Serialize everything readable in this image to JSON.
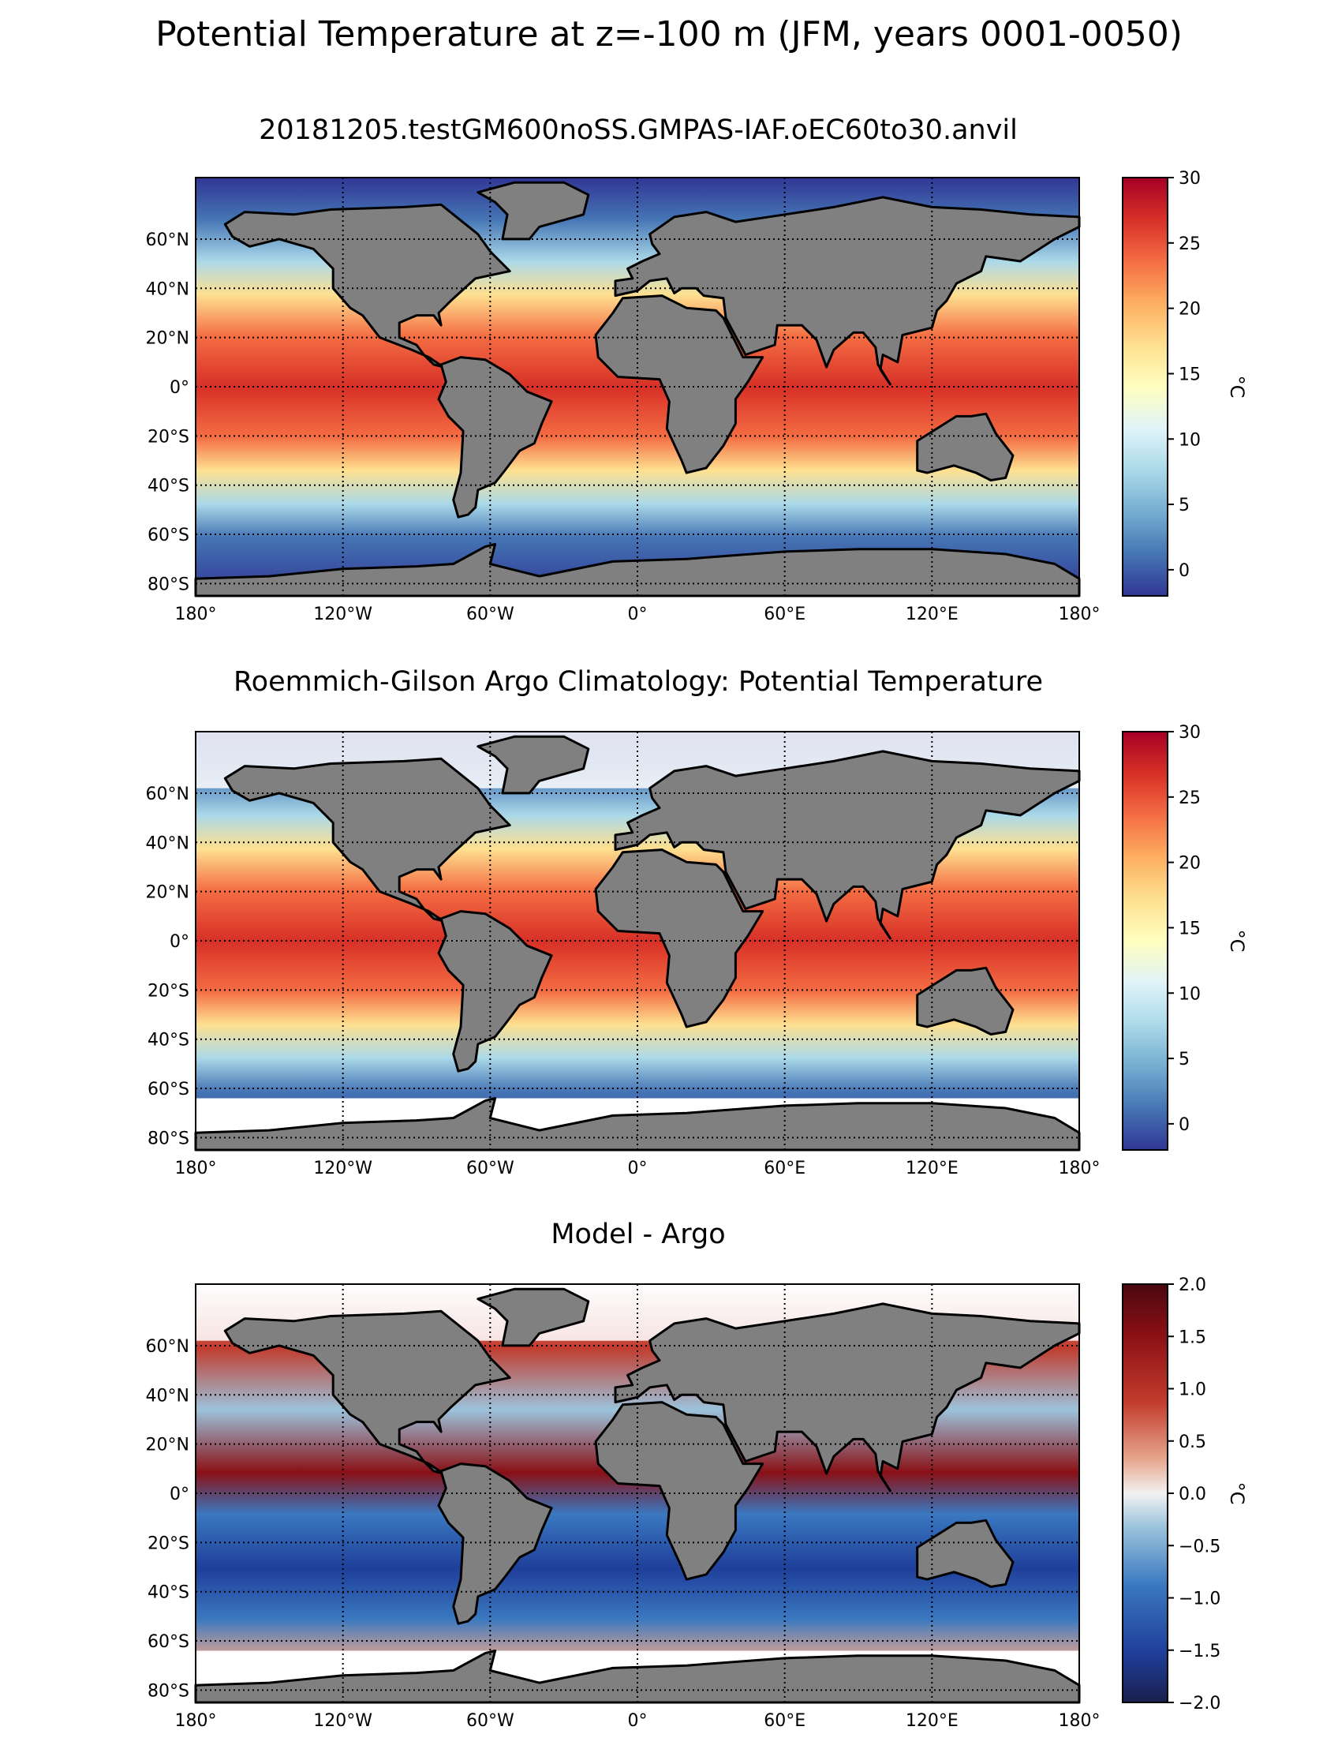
{
  "suptitle": "Potential Temperature at z=-100 m (JFM, years 0001-0050)",
  "panels": [
    {
      "id": "model",
      "title": "20181205.testGM600noSS.GMPAS-IAF.oEC60to30.anvil",
      "lat_labels": [
        "60°N",
        "40°N",
        "20°N",
        "0°",
        "20°S",
        "40°S",
        "60°S",
        "80°S"
      ],
      "lon_labels": [
        "180°",
        "120°W",
        "60°W",
        "0°",
        "60°E",
        "120°E",
        "180°"
      ],
      "colorbar": {
        "cmap": "RdYlBu_r",
        "ticks": [
          "30",
          "25",
          "20",
          "15",
          "10",
          "5",
          "0"
        ],
        "label": "°C"
      }
    },
    {
      "id": "obs",
      "title": "Roemmich-Gilson Argo Climatology: Potential Temperature",
      "lat_labels": [
        "60°N",
        "40°N",
        "20°N",
        "0°",
        "20°S",
        "40°S",
        "60°S",
        "80°S"
      ],
      "lon_labels": [
        "180°",
        "120°W",
        "60°W",
        "0°",
        "60°E",
        "120°E",
        "180°"
      ],
      "colorbar": {
        "cmap": "RdYlBu_r",
        "ticks": [
          "30",
          "25",
          "20",
          "15",
          "10",
          "5",
          "0"
        ],
        "label": "°C"
      }
    },
    {
      "id": "bias",
      "title": "Model - Argo",
      "lat_labels": [
        "60°N",
        "40°N",
        "20°N",
        "0°",
        "20°S",
        "40°S",
        "60°S",
        "80°S"
      ],
      "lon_labels": [
        "180°",
        "120°W",
        "60°W",
        "0°",
        "60°E",
        "120°E",
        "180°"
      ],
      "colorbar": {
        "cmap": "RdBu_r (diverging)",
        "ticks": [
          "2.0",
          "1.5",
          "1.0",
          "0.5",
          "0.0",
          "−0.5",
          "−1.0",
          "−1.5",
          "−2.0"
        ],
        "label": "°C"
      }
    }
  ],
  "colors": {
    "land": "#808080",
    "coastline": "#000000",
    "no_data": "#ffffff",
    "temp_scale": [
      "#313695",
      "#4575b4",
      "#74add1",
      "#abd9e9",
      "#e0f3f8",
      "#ffffbf",
      "#fee090",
      "#fdae61",
      "#f46d43",
      "#d73027",
      "#a50026"
    ],
    "bias_scale": [
      "#1a1f4d",
      "#1f3f9a",
      "#3a78c0",
      "#9cc3dc",
      "#f2f2f2",
      "#e7a78e",
      "#c23a2c",
      "#8a1015",
      "#4a0710"
    ]
  }
}
